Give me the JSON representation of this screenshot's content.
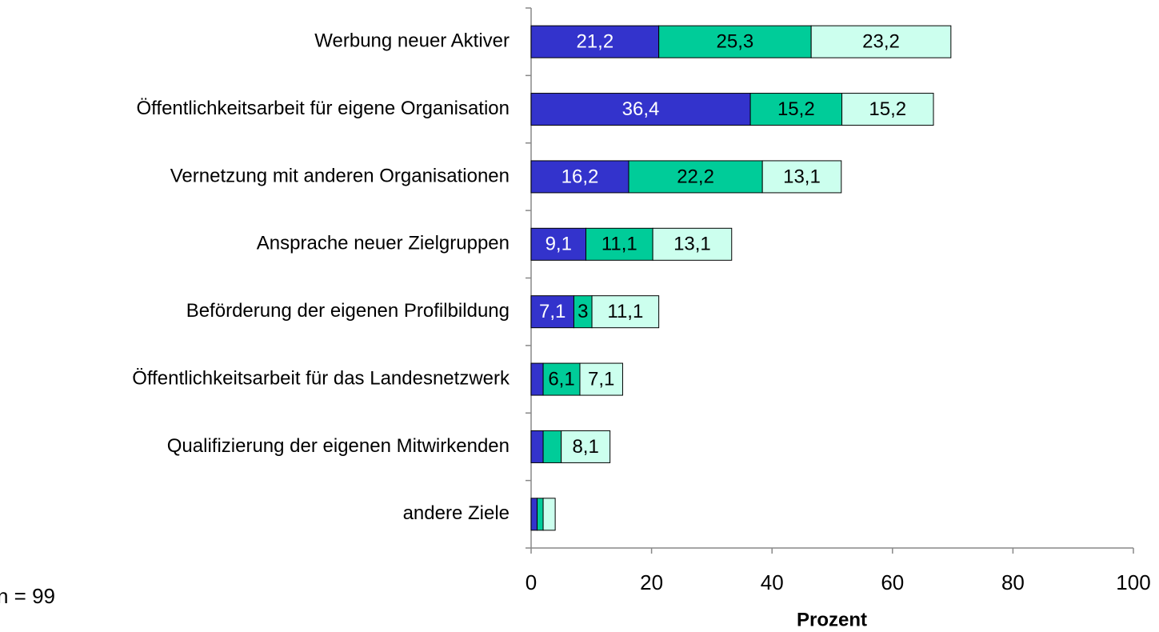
{
  "chart_data": {
    "type": "stacked-barh",
    "categories": [
      "Werbung neuer Aktiver",
      "Öffentlichkeitsarbeit für eigene Organisation",
      "Vernetzung mit anderen Organisationen",
      "Ansprache neuer Zielgruppen",
      "Beförderung der eigenen Profilbildung",
      "Öffentlichkeitsarbeit für das Landesnetzwerk",
      "Qualifizierung der eigenen Mitwirkenden",
      "andere Ziele"
    ],
    "series": [
      {
        "color": "#3333cc",
        "values": [
          21.2,
          36.4,
          16.2,
          9.1,
          7.1,
          2,
          2,
          1
        ],
        "value_labels": [
          "21,2",
          "36,4",
          "16,2",
          "9,1",
          "7,1",
          null,
          null,
          null
        ]
      },
      {
        "color": "#00cc99",
        "values": [
          25.3,
          15.2,
          22.2,
          11.1,
          3,
          6.1,
          3,
          1
        ],
        "value_labels": [
          "25,3",
          "15,2",
          "22,2",
          "11,1",
          "3",
          "6,1",
          null,
          null
        ]
      },
      {
        "color": "#ccffee",
        "values": [
          23.2,
          15.2,
          13.1,
          13.1,
          11.1,
          7.1,
          8.1,
          2
        ],
        "value_labels": [
          "23,2",
          "15,2",
          "13,1",
          "13,1",
          "11,1",
          "7,1",
          "8,1",
          null
        ]
      }
    ],
    "xlim": [
      0,
      100
    ],
    "xticks": [
      0,
      20,
      40,
      60,
      80,
      100
    ],
    "xlabel": "Prozent",
    "note": "n = 99"
  }
}
